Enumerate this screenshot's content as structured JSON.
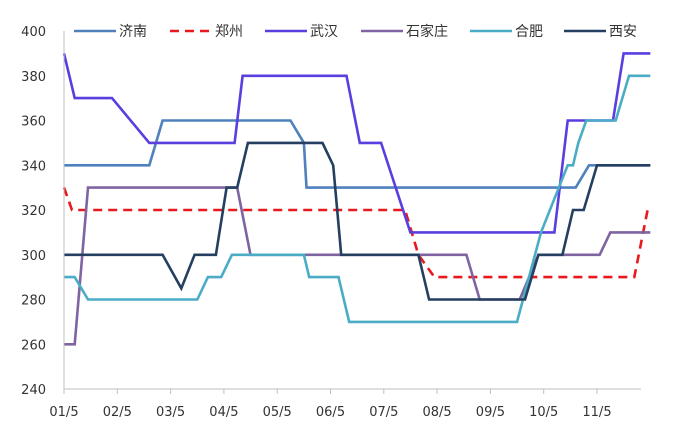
{
  "chart_data": {
    "type": "line",
    "title": "",
    "xlabel": "",
    "ylabel": "",
    "ylim": [
      240,
      400
    ],
    "yticks": [
      240,
      260,
      280,
      300,
      320,
      340,
      360,
      380,
      400
    ],
    "xlim": [
      0,
      11
    ],
    "xticks": [
      {
        "x": 0,
        "label": "01/5"
      },
      {
        "x": 1,
        "label": "02/5"
      },
      {
        "x": 2,
        "label": "03/5"
      },
      {
        "x": 3,
        "label": "04/5"
      },
      {
        "x": 4,
        "label": "05/5"
      },
      {
        "x": 5,
        "label": "06/5"
      },
      {
        "x": 6,
        "label": "07/5"
      },
      {
        "x": 7,
        "label": "08/5"
      },
      {
        "x": 8,
        "label": "09/5"
      },
      {
        "x": 9,
        "label": "10/5"
      },
      {
        "x": 10,
        "label": "11/5"
      }
    ],
    "grid": false,
    "legend_position": "top",
    "series": [
      {
        "name": "济南",
        "color": "#4f81bd",
        "dash": "solid",
        "x": [
          0,
          1.6,
          1.85,
          4.25,
          4.5,
          4.55,
          9.6,
          9.85,
          11
        ],
        "y": [
          340,
          340,
          360,
          360,
          350,
          330,
          330,
          340,
          340
        ]
      },
      {
        "name": "郑州",
        "color": "#e8191c",
        "dash": "dashed",
        "x": [
          0,
          0.15,
          6.4,
          6.65,
          6.95,
          10.7,
          10.95
        ],
        "y": [
          330,
          320,
          320,
          300,
          290,
          290,
          320
        ]
      },
      {
        "name": "武汉",
        "color": "#5b3ee0",
        "dash": "solid",
        "x": [
          0,
          0.2,
          0.9,
          1.6,
          3.2,
          3.35,
          5.3,
          5.55,
          5.95,
          6.5,
          9.2,
          9.45,
          10.3,
          10.5,
          11
        ],
        "y": [
          390,
          370,
          370,
          350,
          350,
          380,
          380,
          350,
          350,
          310,
          310,
          360,
          360,
          390,
          390
        ]
      },
      {
        "name": "石家庄",
        "color": "#8064a2",
        "dash": "solid",
        "x": [
          0,
          0.2,
          0.45,
          3.25,
          3.5,
          7.55,
          7.8,
          8.55,
          8.9,
          10.05,
          10.25,
          11
        ],
        "y": [
          260,
          260,
          330,
          330,
          300,
          300,
          280,
          280,
          300,
          300,
          310,
          310
        ]
      },
      {
        "name": "合肥",
        "color": "#4bacc6",
        "dash": "solid",
        "x": [
          0,
          0.2,
          0.45,
          2.5,
          2.7,
          2.95,
          3.15,
          4.5,
          4.6,
          5.15,
          5.35,
          8.5,
          8.95,
          9.45,
          9.55,
          9.65,
          9.8,
          10.35,
          10.6,
          11
        ],
        "y": [
          290,
          290,
          280,
          280,
          290,
          290,
          300,
          300,
          290,
          290,
          270,
          270,
          310,
          340,
          340,
          350,
          360,
          360,
          380,
          380
        ]
      },
      {
        "name": "西安",
        "color": "#243f60",
        "dash": "solid",
        "x": [
          0,
          1.85,
          2.2,
          2.45,
          2.85,
          3.05,
          3.25,
          3.45,
          4.85,
          5.05,
          5.2,
          6.65,
          6.85,
          8.65,
          8.9,
          9.35,
          9.55,
          9.75,
          10.0,
          11
        ],
        "y": [
          300,
          300,
          285,
          300,
          300,
          330,
          330,
          350,
          350,
          340,
          300,
          300,
          280,
          280,
          300,
          300,
          320,
          320,
          340,
          340
        ]
      }
    ]
  }
}
